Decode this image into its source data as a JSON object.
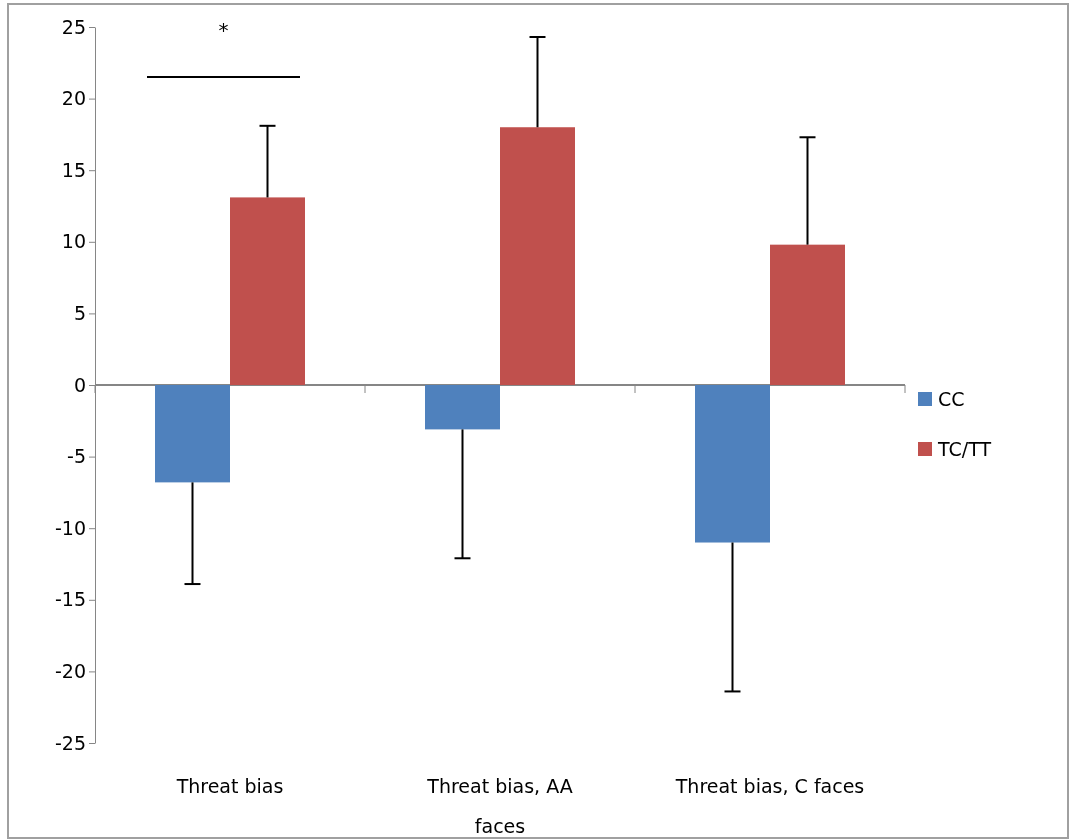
{
  "chart_data": {
    "type": "bar",
    "categories": [
      "Threat bias",
      "Threat bias, AA faces",
      "Threat bias, C faces"
    ],
    "series": [
      {
        "name": "CC",
        "color": "#4f81bd",
        "values": [
          -6.8,
          -3.1,
          -11.0
        ],
        "errors": [
          [
            -13.9,
            -6.8
          ],
          [
            -12.1,
            -3.1
          ],
          [
            -21.4,
            -11.0
          ]
        ]
      },
      {
        "name": "TC/TT",
        "color": "#c0504d",
        "values": [
          13.1,
          18.0,
          9.8
        ],
        "errors": [
          [
            13.1,
            18.1
          ],
          [
            18.0,
            24.3
          ],
          [
            9.8,
            17.3
          ]
        ]
      }
    ],
    "ylim": [
      -25,
      25
    ],
    "yticks": [
      -25,
      -20,
      -15,
      -10,
      -5,
      0,
      5,
      10,
      15,
      20,
      25
    ],
    "legend": "right",
    "annotations": [
      "*"
    ]
  }
}
